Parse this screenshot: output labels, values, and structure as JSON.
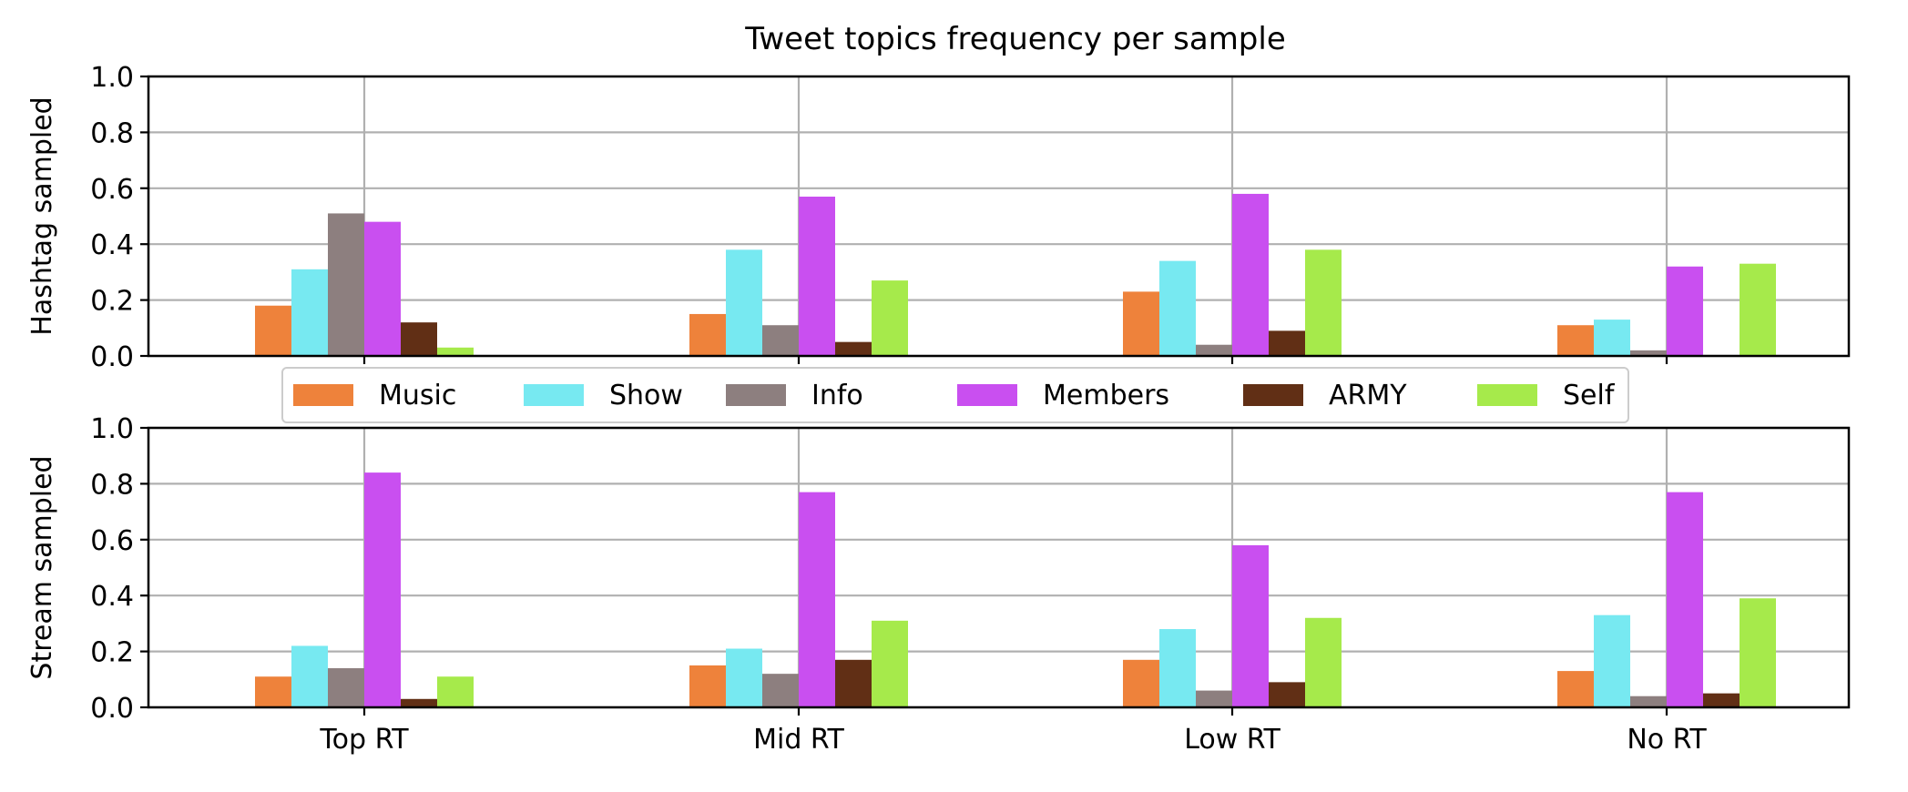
{
  "chart_data": [
    {
      "type": "bar",
      "title": "Tweet topics frequency per sample",
      "xlabel": "",
      "ylabel": "Hashtag sampled",
      "ylim": [
        0,
        1
      ],
      "yticks": [
        "0.0",
        "0.2",
        "0.4",
        "0.6",
        "0.8",
        "1.0"
      ],
      "grid": true,
      "categories": [
        "Top RT",
        "Mid RT",
        "Low RT",
        "No RT"
      ],
      "show_xtick_labels": false,
      "series": [
        {
          "name": "Music",
          "color": "#ee823b",
          "values": [
            0.18,
            0.15,
            0.23,
            0.11
          ]
        },
        {
          "name": "Show",
          "color": "#77e9f1",
          "values": [
            0.31,
            0.38,
            0.34,
            0.13
          ]
        },
        {
          "name": "Info",
          "color": "#8d7f7f",
          "values": [
            0.51,
            0.11,
            0.04,
            0.02
          ]
        },
        {
          "name": "Members",
          "color": "#c94ff0",
          "values": [
            0.48,
            0.57,
            0.58,
            0.32
          ]
        },
        {
          "name": "ARMY",
          "color": "#612f15",
          "values": [
            0.12,
            0.05,
            0.09,
            0.0
          ]
        },
        {
          "name": "Self",
          "color": "#a6ea4b",
          "values": [
            0.03,
            0.27,
            0.38,
            0.33
          ]
        }
      ]
    },
    {
      "type": "bar",
      "title": "",
      "xlabel": "",
      "ylabel": "Stream sampled",
      "ylim": [
        0,
        1
      ],
      "yticks": [
        "0.0",
        "0.2",
        "0.4",
        "0.6",
        "0.8",
        "1.0"
      ],
      "grid": true,
      "categories": [
        "Top RT",
        "Mid RT",
        "Low RT",
        "No RT"
      ],
      "show_xtick_labels": true,
      "series": [
        {
          "name": "Music",
          "color": "#ee823b",
          "values": [
            0.11,
            0.15,
            0.17,
            0.13
          ]
        },
        {
          "name": "Show",
          "color": "#77e9f1",
          "values": [
            0.22,
            0.21,
            0.28,
            0.33
          ]
        },
        {
          "name": "Info",
          "color": "#8d7f7f",
          "values": [
            0.14,
            0.12,
            0.06,
            0.04
          ]
        },
        {
          "name": "Members",
          "color": "#c94ff0",
          "values": [
            0.84,
            0.77,
            0.58,
            0.77
          ]
        },
        {
          "name": "ARMY",
          "color": "#612f15",
          "values": [
            0.03,
            0.17,
            0.09,
            0.05
          ]
        },
        {
          "name": "Self",
          "color": "#a6ea4b",
          "values": [
            0.11,
            0.31,
            0.32,
            0.39
          ]
        }
      ]
    }
  ],
  "legend": {
    "placement": "between panels",
    "entries": [
      "Music",
      "Show",
      "Info",
      "Members",
      "ARMY",
      "Self"
    ]
  }
}
